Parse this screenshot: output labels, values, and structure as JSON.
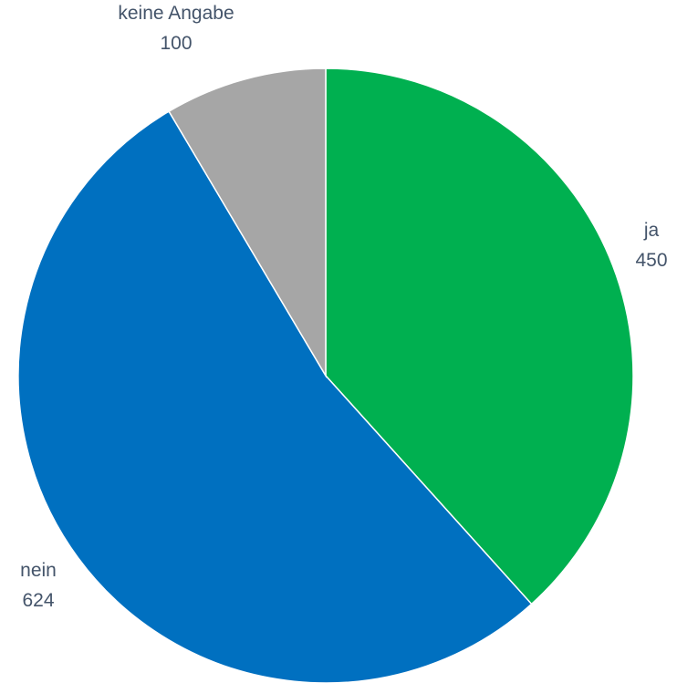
{
  "chart_data": {
    "type": "pie",
    "title": "",
    "start_angle_deg": 0,
    "direction": "clockwise",
    "slices": [
      {
        "label": "ja",
        "value": 450,
        "value_label": "450",
        "color": "#00B050"
      },
      {
        "label": "nein",
        "value": 624,
        "value_label": "624",
        "color": "#0070C0"
      },
      {
        "label": "keine Angabe",
        "value": 100,
        "value_label": "100",
        "color": "#A6A6A6"
      }
    ],
    "legend": "none",
    "label_color": "#44546A"
  }
}
